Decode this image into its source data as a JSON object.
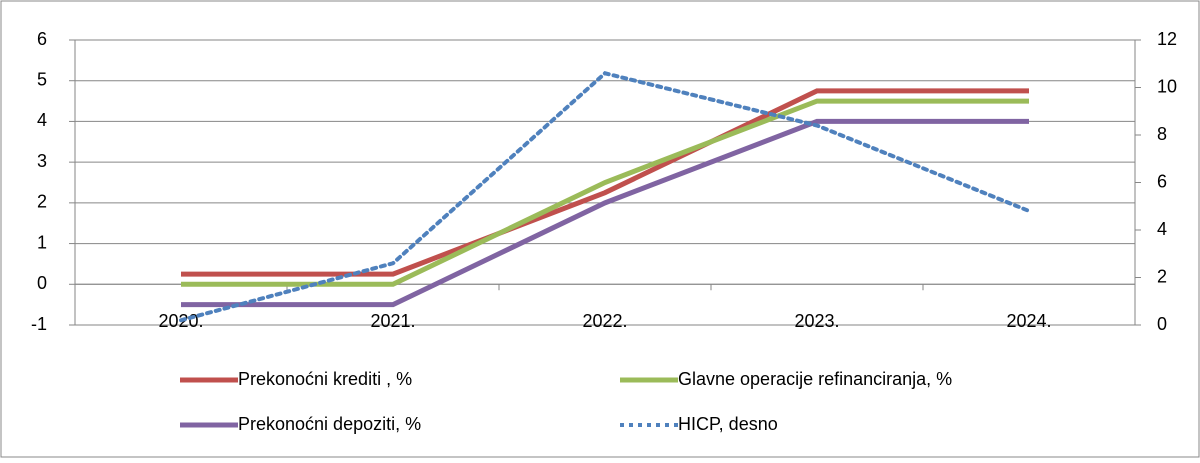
{
  "chart_data": {
    "type": "line",
    "categories": [
      "2020.",
      "2021.",
      "2022.",
      "2023.",
      "2024."
    ],
    "ylim": [
      -1,
      6
    ],
    "yticks": [
      -1,
      0,
      1,
      2,
      3,
      4,
      5,
      6
    ],
    "y2lim": [
      0,
      12
    ],
    "y2ticks": [
      0,
      2,
      4,
      6,
      8,
      10,
      12
    ],
    "grid": true,
    "legend": "bottom",
    "series": [
      {
        "name": "Prekonoćni krediti , %",
        "color": "#c0504d",
        "values": [
          0.25,
          0.25,
          2.25,
          4.75,
          4.75
        ]
      },
      {
        "name": "Glavne operacije refinanciranja, %",
        "color": "#9bbb59",
        "values": [
          0,
          0,
          2.5,
          4.5,
          4.5
        ]
      },
      {
        "name": "Prekonoćni depoziti, %",
        "color": "#8064a2",
        "values": [
          -0.5,
          -0.5,
          2,
          4,
          4
        ]
      },
      {
        "name": "HICP, desno",
        "color": "#4f81bd",
        "style": "dotted",
        "axis": "y2",
        "values": [
          0.2,
          2.6,
          10.6,
          8.4,
          4.8
        ]
      }
    ]
  }
}
